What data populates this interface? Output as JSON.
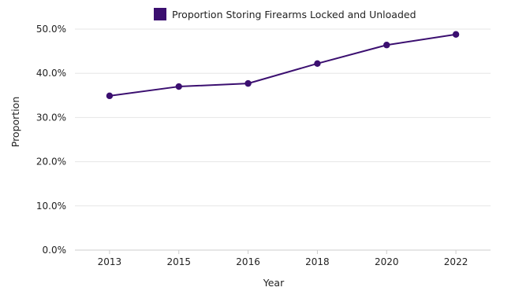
{
  "chart_data": {
    "type": "line",
    "title": "",
    "xlabel": "Year",
    "ylabel": "Proportion",
    "categories": [
      "2013",
      "2015",
      "2016",
      "2018",
      "2020",
      "2022"
    ],
    "series": [
      {
        "name": "Proportion Storing Firearms Locked and Unloaded",
        "values": [
          0.349,
          0.37,
          0.377,
          0.422,
          0.464,
          0.488
        ],
        "color": "#3b0f70"
      }
    ],
    "ylim": [
      0,
      0.5
    ],
    "yticks": [
      0,
      0.1,
      0.2,
      0.3,
      0.4,
      0.5
    ],
    "ytick_labels": [
      "0.0%",
      "10.0%",
      "20.0%",
      "30.0%",
      "40.0%",
      "50.0%"
    ],
    "grid": true,
    "legend_position": "top-center",
    "colors": {
      "series": "#3b0f70",
      "grid": "#e6e6e6",
      "axis": "#cccccc"
    }
  }
}
